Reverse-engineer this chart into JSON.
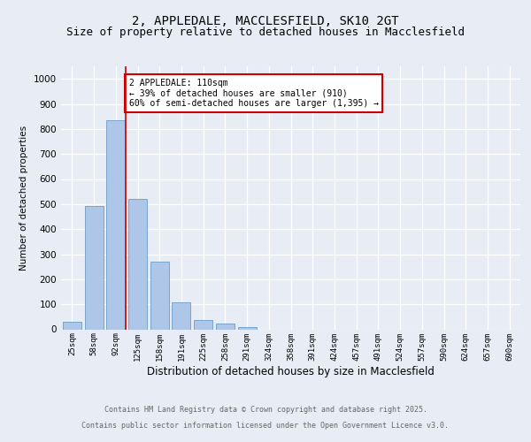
{
  "title_line1": "2, APPLEDALE, MACCLESFIELD, SK10 2GT",
  "title_line2": "Size of property relative to detached houses in Macclesfield",
  "xlabel": "Distribution of detached houses by size in Macclesfield",
  "ylabel": "Number of detached properties",
  "categories": [
    "25sqm",
    "58sqm",
    "92sqm",
    "125sqm",
    "158sqm",
    "191sqm",
    "225sqm",
    "258sqm",
    "291sqm",
    "324sqm",
    "358sqm",
    "391sqm",
    "424sqm",
    "457sqm",
    "491sqm",
    "524sqm",
    "557sqm",
    "590sqm",
    "624sqm",
    "657sqm",
    "690sqm"
  ],
  "values": [
    30,
    493,
    833,
    522,
    270,
    108,
    36,
    22,
    8,
    0,
    0,
    0,
    0,
    0,
    0,
    0,
    0,
    0,
    0,
    0,
    0
  ],
  "bar_color": "#aec6e8",
  "bar_edge_color": "#5a8fc0",
  "vline_x": 2.45,
  "vline_color": "#cc0000",
  "annotation_title": "2 APPLEDALE: 110sqm",
  "annotation_line2": "← 39% of detached houses are smaller (910)",
  "annotation_line3": "60% of semi-detached houses are larger (1,395) →",
  "annotation_box_color": "#cc0000",
  "annotation_fill": "#ffffff",
  "ylim": [
    0,
    1050
  ],
  "yticks": [
    0,
    100,
    200,
    300,
    400,
    500,
    600,
    700,
    800,
    900,
    1000
  ],
  "bg_color": "#e8edf5",
  "plot_bg_color": "#e8edf5",
  "footer_line1": "Contains HM Land Registry data © Crown copyright and database right 2025.",
  "footer_line2": "Contains public sector information licensed under the Open Government Licence v3.0.",
  "title_fontsize": 10,
  "subtitle_fontsize": 9
}
